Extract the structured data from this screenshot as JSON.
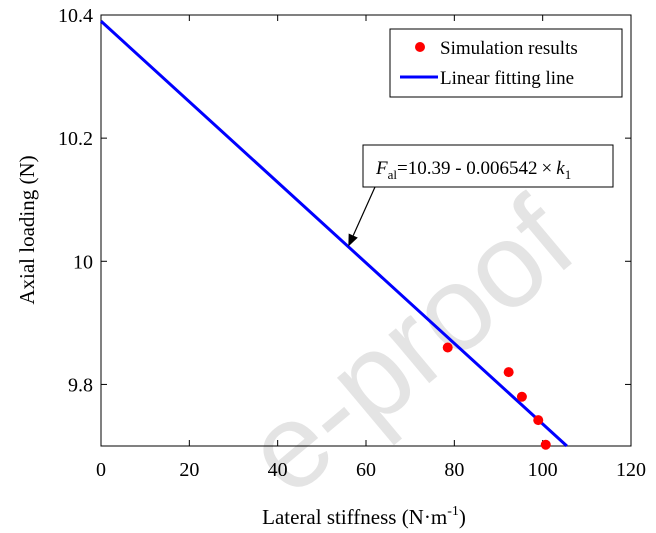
{
  "chart_data": {
    "type": "scatter",
    "xlabel": "Lateral stiffness (N·m",
    "xlabel_sup": "-1",
    "xlabel_close": ")",
    "ylabel": "Axial loading (N)",
    "xlim": [
      0,
      120
    ],
    "ylim": [
      9.7,
      10.4
    ],
    "x_ticks": [
      0,
      20,
      40,
      60,
      80,
      100,
      120
    ],
    "y_ticks": [
      9.8,
      10,
      10.2,
      10.4
    ],
    "x_tick_labels": [
      "0",
      "20",
      "40",
      "60",
      "80",
      "100",
      "120"
    ],
    "y_tick_labels": [
      "9.8",
      "10",
      "10.2",
      "10.4"
    ],
    "grid": false,
    "legend_position": "top-right",
    "series": [
      {
        "name": "Simulation results",
        "kind": "scatter",
        "color": "#ff0000",
        "points": [
          {
            "x": 78.5,
            "y": 9.86
          },
          {
            "x": 92.3,
            "y": 9.82
          },
          {
            "x": 95.3,
            "y": 9.78
          },
          {
            "x": 99.0,
            "y": 9.742
          },
          {
            "x": 100.7,
            "y": 9.702
          }
        ]
      },
      {
        "name": "Linear fitting line",
        "kind": "line",
        "color": "#0000ff",
        "intercept": 10.39,
        "slope": -0.006542
      }
    ],
    "annotation": {
      "f": "F",
      "f_sub": "al",
      "eq": "=10.39 - 0.006542",
      "times": "×",
      "k": "k",
      "k_sub": "1",
      "arrow_x": 56,
      "arrow_y": 10.024
    }
  },
  "watermark": "e-proof"
}
